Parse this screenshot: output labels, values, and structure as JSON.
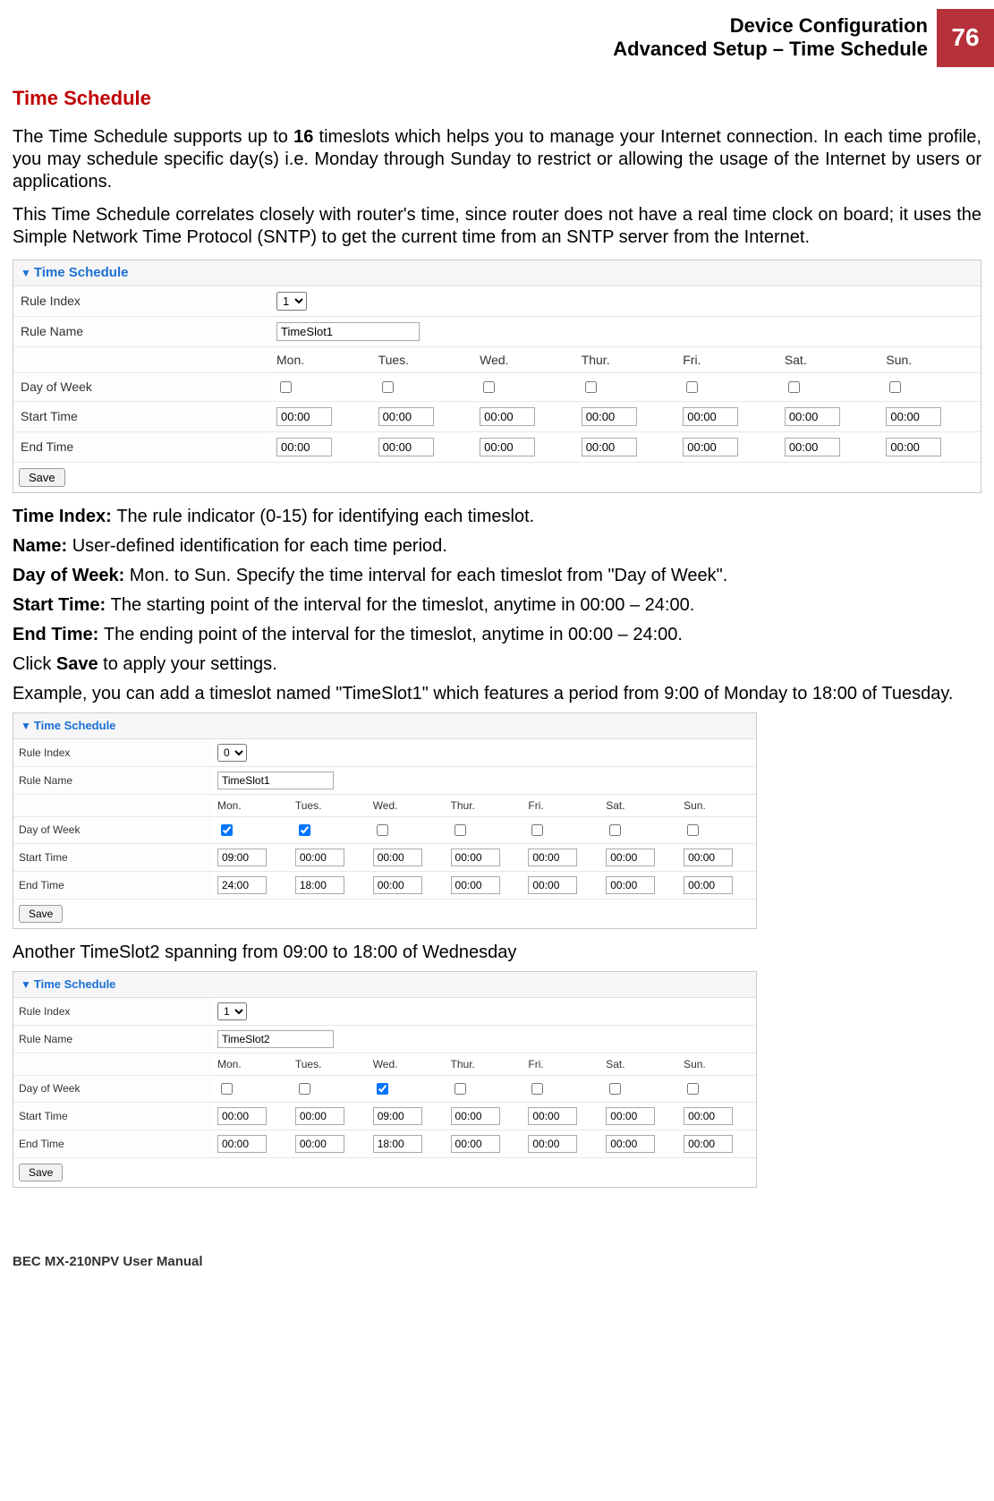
{
  "header": {
    "line1": "Device Configuration",
    "line2": "Advanced Setup – Time Schedule",
    "page_number": "76"
  },
  "section_title": "Time Schedule",
  "paragraphs": {
    "p1a": "The Time Schedule supports up to ",
    "p1b": "16",
    "p1c": " timeslots which helps you to manage your Internet connection. In each time profile, you may schedule specific day(s) i.e. Monday through Sunday to restrict or allowing the usage of the Internet by users or applications.",
    "p2": "This Time Schedule correlates closely with router's time, since router does not have a real time clock on board; it uses the Simple Network Time Protocol (SNTP) to get the current time from an SNTP server from the Internet."
  },
  "panel_title": "Time Schedule",
  "labels": {
    "rule_index": "Rule Index",
    "rule_name": "Rule Name",
    "day_of_week": "Day of Week",
    "start_time": "Start Time",
    "end_time": "End Time",
    "save": "Save"
  },
  "days": [
    "Mon.",
    "Tues.",
    "Wed.",
    "Thur.",
    "Fri.",
    "Sat.",
    "Sun."
  ],
  "panel1": {
    "rule_index": "1",
    "rule_name": "TimeSlot1",
    "checked": [
      false,
      false,
      false,
      false,
      false,
      false,
      false
    ],
    "start": [
      "00:00",
      "00:00",
      "00:00",
      "00:00",
      "00:00",
      "00:00",
      "00:00"
    ],
    "end": [
      "00:00",
      "00:00",
      "00:00",
      "00:00",
      "00:00",
      "00:00",
      "00:00"
    ]
  },
  "descriptions": {
    "time_index_label": "Time Index: ",
    "time_index_text": "The rule indicator (0-15) for identifying each timeslot.",
    "name_label": "Name: ",
    "name_text": "User-defined identification for each time period.",
    "dow_label": "Day of Week: ",
    "dow_text": "Mon. to Sun. Specify the time interval for each timeslot from \"Day of Week\".",
    "start_label": "Start Time: ",
    "start_text": "The starting point of the interval for the timeslot, anytime in 00:00 – 24:00.",
    "end_label": "End Time: ",
    "end_text": "The ending point of the interval for the timeslot, anytime in 00:00 – 24:00.",
    "save_line_a": "Click ",
    "save_line_b": "Save",
    "save_line_c": " to apply your settings.",
    "example1": "Example, you can add a timeslot named \"TimeSlot1\" which features a period from 9:00 of Monday to 18:00 of Tuesday."
  },
  "panel2": {
    "rule_index": "0",
    "rule_name": "TimeSlot1",
    "checked": [
      true,
      true,
      false,
      false,
      false,
      false,
      false
    ],
    "start": [
      "09:00",
      "00:00",
      "00:00",
      "00:00",
      "00:00",
      "00:00",
      "00:00"
    ],
    "end": [
      "24:00",
      "18:00",
      "00:00",
      "00:00",
      "00:00",
      "00:00",
      "00:00"
    ]
  },
  "example2_text": "Another TimeSlot2 spanning from 09:00 to 18:00 of Wednesday",
  "panel3": {
    "rule_index": "1",
    "rule_name": "TimeSlot2",
    "checked": [
      false,
      false,
      true,
      false,
      false,
      false,
      false
    ],
    "start": [
      "00:00",
      "00:00",
      "09:00",
      "00:00",
      "00:00",
      "00:00",
      "00:00"
    ],
    "end": [
      "00:00",
      "00:00",
      "18:00",
      "00:00",
      "00:00",
      "00:00",
      "00:00"
    ]
  },
  "footer": "BEC MX-210NPV User Manual"
}
